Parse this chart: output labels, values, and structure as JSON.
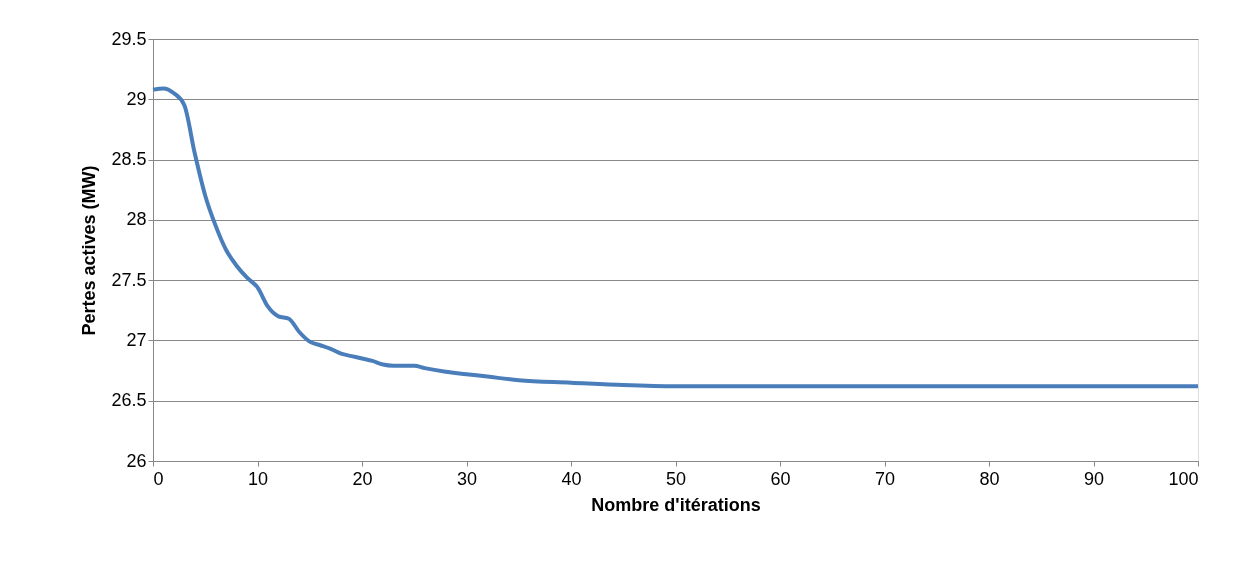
{
  "chart_data": {
    "type": "line",
    "xlabel": "Nombre d'itérations",
    "ylabel": "Pertes actives (MW)",
    "x": [
      0,
      1,
      2,
      3,
      4,
      5,
      6,
      7,
      8,
      9,
      10,
      11,
      12,
      13,
      14,
      15,
      16,
      17,
      18,
      19,
      20,
      21,
      22,
      23,
      25,
      26,
      28,
      30,
      32,
      35,
      40,
      45,
      50,
      60,
      70,
      80,
      90,
      100
    ],
    "series": [
      {
        "color": "#4a7ebb",
        "values": [
          29.08,
          29.09,
          29.05,
          28.95,
          28.55,
          28.2,
          27.95,
          27.75,
          27.62,
          27.52,
          27.44,
          27.28,
          27.2,
          27.18,
          27.07,
          26.99,
          26.96,
          26.93,
          26.89,
          26.87,
          26.85,
          26.83,
          26.8,
          26.79,
          26.79,
          26.77,
          26.74,
          26.72,
          26.7,
          26.67,
          26.65,
          26.63,
          26.62,
          26.62,
          26.62,
          26.62,
          26.62,
          26.62
        ]
      }
    ],
    "xlim": [
      0,
      100
    ],
    "xticks": [
      0,
      10,
      20,
      30,
      40,
      50,
      60,
      70,
      80,
      90,
      100
    ],
    "ylim": [
      26,
      29.5
    ],
    "yticks": [
      26,
      26.5,
      27,
      27.5,
      28,
      28.5,
      29,
      29.5
    ],
    "grid": "y",
    "marker": "none",
    "line_style": "solid"
  }
}
